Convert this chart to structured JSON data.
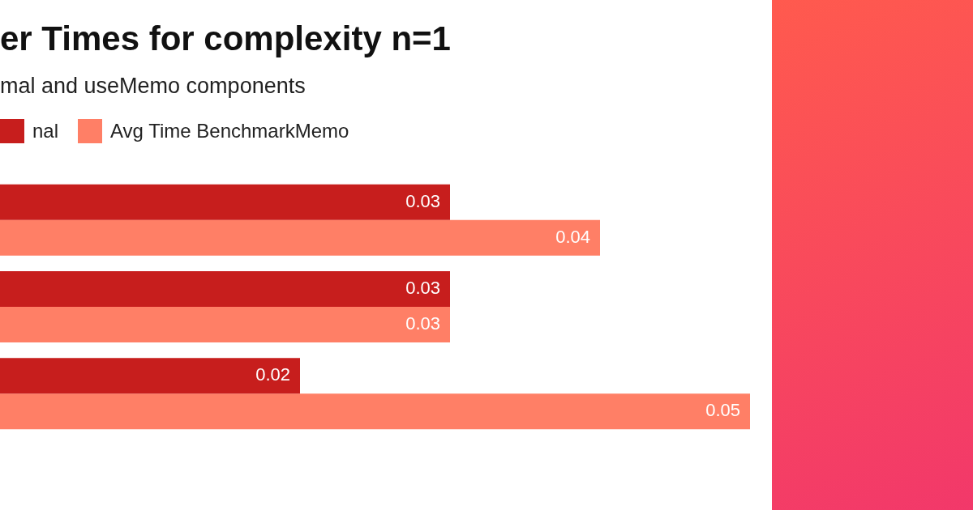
{
  "chart_data": {
    "type": "bar",
    "title": "er Times for complexity n=1",
    "subtitle": "mal and useMemo components",
    "orientation": "horizontal",
    "categories": [
      null,
      null,
      null
    ],
    "series": [
      {
        "name": "nal",
        "color": "#c71e1d",
        "values": [
          0.03,
          0.03,
          0.02
        ]
      },
      {
        "name": "Avg Time BenchmarkMemo",
        "color": "#ff7f66",
        "values": [
          0.04,
          0.03,
          0.05
        ]
      }
    ],
    "data_labels": true,
    "legend": "top left",
    "tick_labels": false
  }
}
